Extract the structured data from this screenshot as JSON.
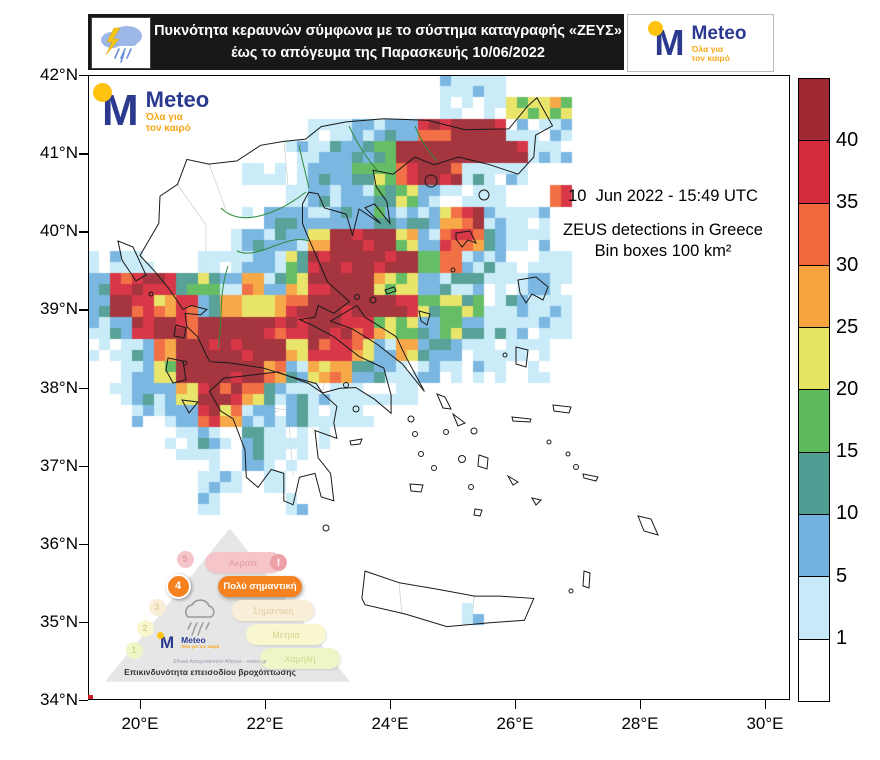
{
  "header": {
    "title_line1": "Πυκνότητα κεραυνών σύμφωνα με το σύστημα καταγραφής «ΖΕΥΣ»",
    "title_line2": "έως το απόγευμα της Παρασκευής 10/06/2022"
  },
  "brand": {
    "name": "Meteo",
    "tagline1": "Όλα για",
    "tagline2": "τον καιρό"
  },
  "map": {
    "annotation": {
      "datetime": "10  Jun 2022 - 15:49 UTC",
      "line1": "ZEUS detections in Greece",
      "line2": "Bin boxes 100 km²"
    },
    "x_axis": {
      "ticks": [
        "20°E",
        "22°E",
        "24°E",
        "26°E",
        "28°E",
        "30°E"
      ],
      "lon_values": [
        20,
        22,
        24,
        26,
        28,
        30
      ]
    },
    "y_axis": {
      "ticks": [
        "42°N",
        "41°N",
        "40°N",
        "39°N",
        "38°N",
        "37°N",
        "36°N",
        "35°N",
        "34°N"
      ],
      "lat_values": [
        42,
        41,
        40,
        39,
        38,
        37,
        36,
        35,
        34
      ]
    }
  },
  "colorbar": {
    "tick_labels": [
      "1",
      "5",
      "10",
      "15",
      "20",
      "25",
      "30",
      "35",
      "40"
    ]
  },
  "chart_data": {
    "type": "heatmap",
    "title": "ZEUS detections in Greece",
    "datetime": "10  Jun 2022 - 15:49 UTC",
    "bin_note": "Bin boxes 100 km²",
    "lon_range": [
      19.17,
      30.43
    ],
    "lat_range": [
      34,
      42
    ],
    "scale_levels": [
      1,
      5,
      10,
      15,
      20,
      25,
      30,
      35,
      40
    ],
    "palette": [
      "#ffffff",
      "#c7eaf8",
      "#74b3df",
      "#4f9d93",
      "#5dbb5d",
      "#e8e463",
      "#f7a440",
      "#f1683c",
      "#d52c3c",
      "#a02a34"
    ],
    "legend_position": "right",
    "grid_legend": ". none, L 1-5, B 5-10, T 10-15, G 15-20, Y 20-25, O 25-30, R 30-35, C 35-40, D >40",
    "grid_rows": [
      "................LLL.............",
      "................LLLGGY..........",
      "..........LLBBBCCDDLLL..........",
      ".........LLBBGDDDDDDLL..........",
      ".......LLLBBTGCDCBLL............",
      ".........LBBBGGBLLL..C..........",
      ".......LBBBBBTBBOCBLL...........",
      "......LBBBYDDDYBCRBLL...........",
      "LBL..LLBBGDDDDDGCBBLLL..........",
      "BCDCTGBOBYDDDYGBBBLLBL..........",
      "BDCOCBOYOCDCDDCGYGLBLL..........",
      "LBCDCDDDCCDDCYGBGBBLLL..........",
      "LLBODDDDDYCCOBOBBLLLL...........",
      ".LBYDDDDOBYOBBLBLLL.L...........",
      ".LBBODCOBBLBLLL.................",
      "..LLBCOBLBLLL...................",
      "...LLBLTLLL.....................",
      "....LL.BLL......................",
      ".....LL.L.......................",
      ".....L...L......................",
      "................................",
      "................................",
      "................................",
      "................................",
      ".................L..............",
      "................................",
      "................................",
      "................................"
    ]
  },
  "pyramid": {
    "caption": "Επικινδυνότητα επεισοδίου βροχόπτωσης",
    "small_print": "Εθνικό Αστεροσκοπείο Αθηνών - meteo.gr",
    "levels": [
      {
        "num": "5",
        "label": "Ακραία",
        "active": false,
        "badge": "!",
        "pill_color": "#f6c5ca",
        "text_color": "#e09aa2"
      },
      {
        "num": "4",
        "label": "Πολύ σημαντική",
        "active": true,
        "pill_color": "#f5821f",
        "text_color": "#ffffff"
      },
      {
        "num": "3",
        "label": "Σημαντική",
        "active": false,
        "pill_color": "#f9efd8",
        "text_color": "#e2cda2"
      },
      {
        "num": "2",
        "label": "Μέτρια",
        "active": false,
        "pill_color": "#f9f7cf",
        "text_color": "#d9d494"
      },
      {
        "num": "1",
        "label": "Χαμηλή",
        "active": false,
        "pill_color": "#f0f5c8",
        "text_color": "#ccd98d"
      }
    ]
  }
}
